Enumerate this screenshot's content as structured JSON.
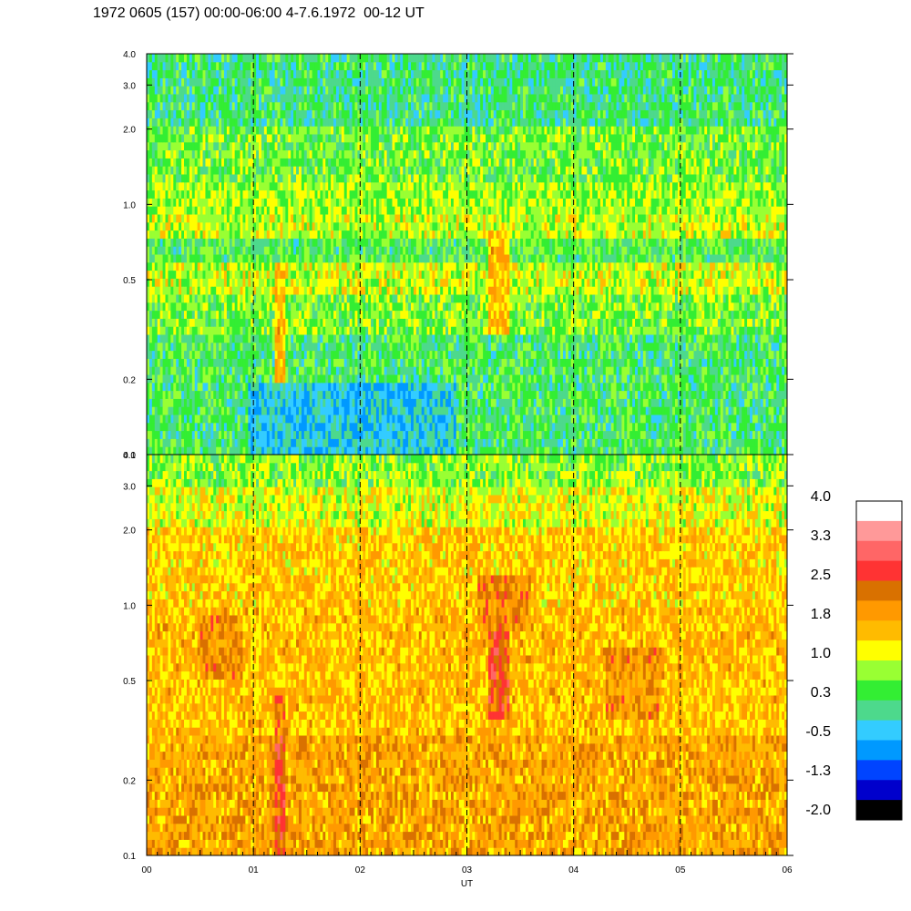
{
  "title": "1972 0605 (157) 00:00-06:00 4-7.6.1972  00-12 UT",
  "chart_data": {
    "type": "heatmap",
    "xlabel": "UT",
    "x_ticks": [
      "00",
      "01",
      "02",
      "03",
      "04",
      "05",
      "06"
    ],
    "xlim": [
      0,
      6
    ],
    "dashed_lines_at": [
      1,
      2,
      3,
      4,
      5
    ],
    "y_scale": "log",
    "ylim": [
      0.1,
      4.0
    ],
    "y_ticks": [
      0.1,
      0.2,
      0.5,
      1.0,
      2.0,
      3.0,
      4.0
    ],
    "y_tick_labels": [
      "0.1",
      "0.2",
      "0.5",
      "1.0",
      "2.0",
      "3.0",
      "4.0"
    ],
    "panels": [
      {
        "name": "upper",
        "dominant_levels": "green to yellow (0.3-1.0)",
        "bands": [
          {
            "y_range": [
              0.1,
              0.3
            ],
            "level": 0.3
          },
          {
            "y_range": [
              0.3,
              0.45
            ],
            "level": 0.65
          },
          {
            "y_range": [
              0.45,
              0.6
            ],
            "level": 1.0
          },
          {
            "y_range": [
              0.6,
              0.75
            ],
            "level": 0.4
          },
          {
            "y_range": [
              0.75,
              0.9
            ],
            "level": 1.0
          },
          {
            "y_range": [
              0.9,
              1.2
            ],
            "level": 0.8
          },
          {
            "y_range": [
              1.2,
              2.0
            ],
            "level": 0.6
          },
          {
            "y_range": [
              2.0,
              4.0
            ],
            "level": 0.2
          }
        ],
        "features": [
          {
            "x_range": [
              1.2,
              1.3
            ],
            "y_range": [
              0.1,
              0.6
            ],
            "level": 1.6
          },
          {
            "x_range": [
              0.95,
              2.9
            ],
            "y_range": [
              0.1,
              0.2
            ],
            "level": -0.3
          },
          {
            "x_range": [
              3.2,
              3.4
            ],
            "y_range": [
              0.3,
              0.8
            ],
            "level": 1.6
          }
        ]
      },
      {
        "name": "lower",
        "dominant_levels": "orange to yellow (1.0-2.0)",
        "bands": [
          {
            "y_range": [
              0.1,
              0.3
            ],
            "level": 1.8
          },
          {
            "y_range": [
              0.3,
              1.0
            ],
            "level": 1.6
          },
          {
            "y_range": [
              1.0,
              2.0
            ],
            "level": 1.5
          },
          {
            "y_range": [
              2.0,
              3.0
            ],
            "level": 1.1
          },
          {
            "y_range": [
              3.0,
              4.0
            ],
            "level": 0.7
          }
        ],
        "features": [
          {
            "x_range": [
              1.2,
              1.3
            ],
            "y_range": [
              0.1,
              0.3
            ],
            "level": 2.6
          },
          {
            "x_range": [
              1.2,
              1.3
            ],
            "y_range": [
              0.3,
              0.45
            ],
            "level": 2.2
          },
          {
            "x_range": [
              3.2,
              3.4
            ],
            "y_range": [
              0.35,
              0.8
            ],
            "level": 2.5
          },
          {
            "x_range": [
              3.1,
              3.6
            ],
            "y_range": [
              0.8,
              1.3
            ],
            "level": 2.1
          },
          {
            "x_range": [
              4.3,
              4.8
            ],
            "y_range": [
              0.35,
              0.7
            ],
            "level": 2.0
          },
          {
            "x_range": [
              0.5,
              0.9
            ],
            "y_range": [
              0.5,
              0.9
            ],
            "level": 2.0
          }
        ]
      }
    ],
    "colorbar": {
      "labels": [
        "4.0",
        "3.3",
        "2.5",
        "1.8",
        "1.0",
        "0.3",
        "-0.5",
        "-1.3",
        "-2.0"
      ],
      "colors": [
        "#ffffff",
        "#ff9999",
        "#ff6666",
        "#ff3333",
        "#d97100",
        "#ff9900",
        "#ffbb00",
        "#ffff00",
        "#99ff33",
        "#33ee33",
        "#4dd98c",
        "#33ccff",
        "#0099ff",
        "#0044ff",
        "#0000cc",
        "#000000"
      ]
    },
    "grid": false,
    "legend": "colorbar at right"
  }
}
